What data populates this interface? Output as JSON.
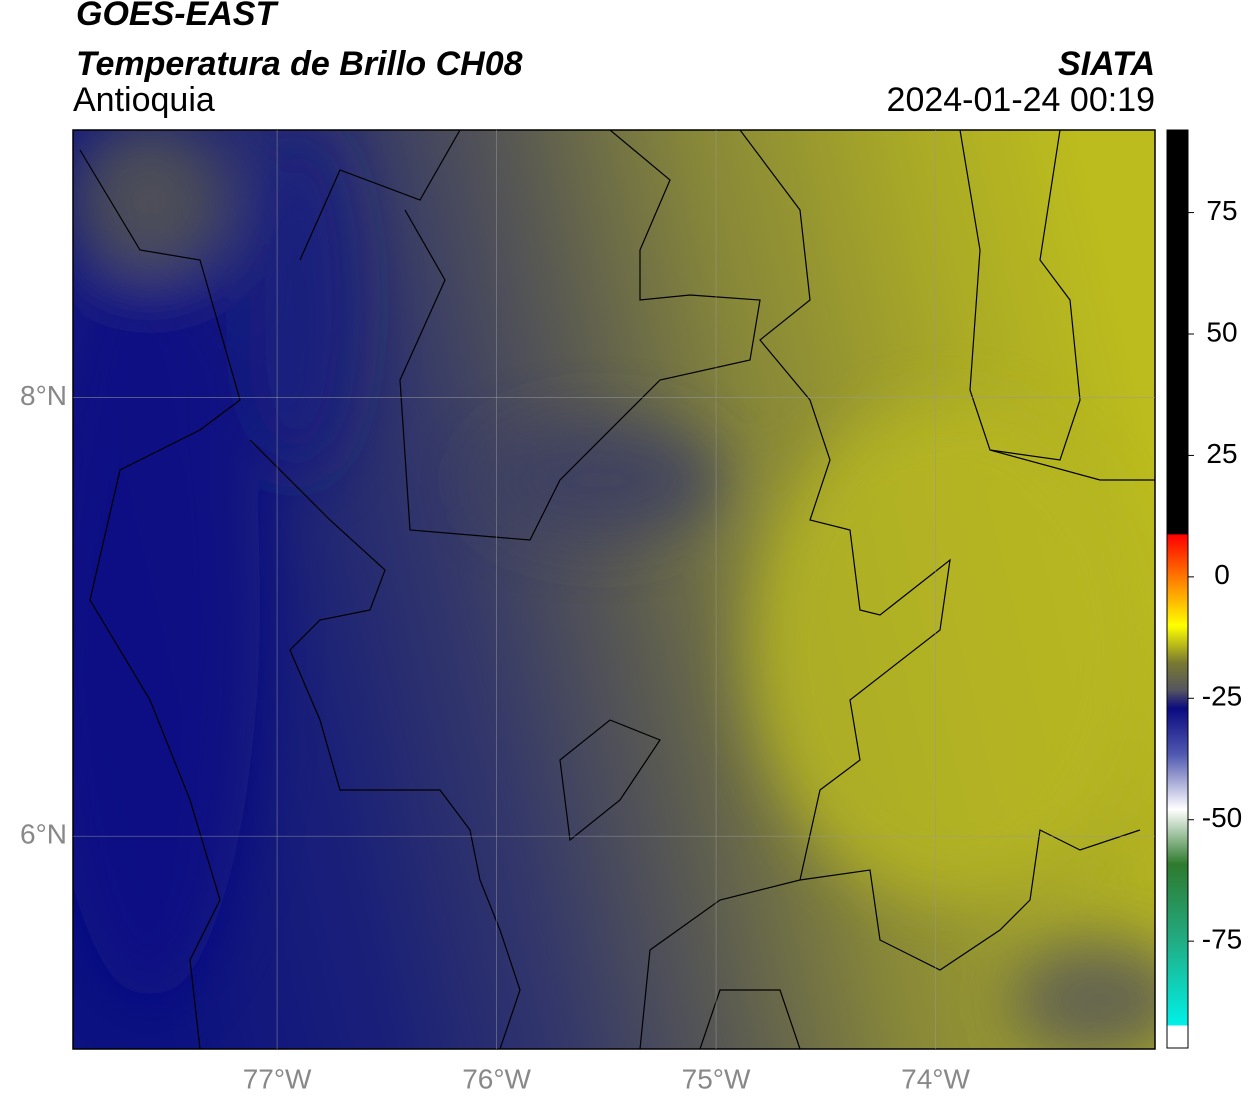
{
  "header": {
    "satellite": "GOES-EAST",
    "product": "Temperatura de Brillo CH08",
    "region": "Antioquia",
    "source": "SIATA",
    "datetime": "2024-01-24 00:19"
  },
  "map": {
    "xlim": [
      -77.93,
      -73.0
    ],
    "ylim": [
      5.03,
      9.22
    ],
    "xticks": [
      {
        "value": -77,
        "label": "77°W"
      },
      {
        "value": -76,
        "label": "76°W"
      },
      {
        "value": -75,
        "label": "75°W"
      },
      {
        "value": -74,
        "label": "74°W"
      }
    ],
    "yticks": [
      {
        "value": 8,
        "label": "8°N"
      },
      {
        "value": 6,
        "label": "6°N"
      }
    ],
    "grid": true
  },
  "colorbar": {
    "lim": [
      -97,
      92
    ],
    "ticks": [
      75,
      50,
      25,
      0,
      -25,
      -50,
      -75
    ]
  }
}
